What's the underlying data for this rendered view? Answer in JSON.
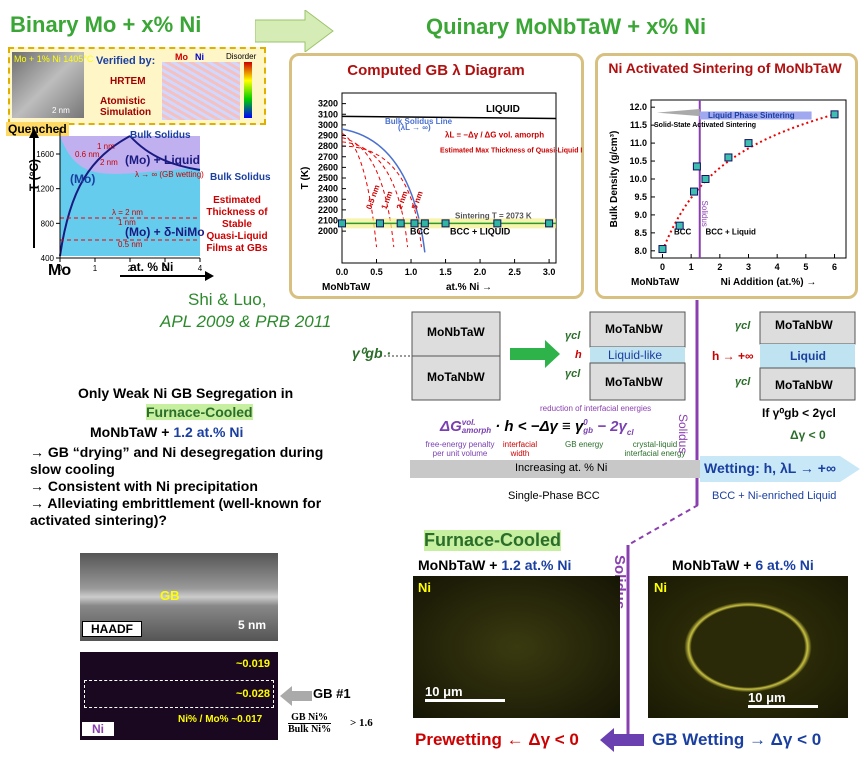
{
  "header": {
    "left_title": "Binary Mo + x% Ni",
    "right_title": "Quinary MoNbTaW + x% Ni"
  },
  "binary": {
    "inset_label": "Mo + 1% Ni 1405°C",
    "verified_by": "Verified by:",
    "hrtem": "HRTEM",
    "atomistic": "Atomistic Simulation",
    "mo": "Mo",
    "ni": "Ni",
    "disorder": "Disorder",
    "scale": "2 nm",
    "quenched": "Quenched",
    "ylabel": "T (°C)",
    "xlabel": "at. % Ni",
    "x_start": "Mo",
    "ylim": [
      400,
      1900
    ],
    "yticks": [
      400,
      800,
      1200,
      1600
    ],
    "xlim": [
      0,
      4
    ],
    "xticks": [
      0,
      1,
      2,
      3,
      4
    ],
    "bulk_solidus_top": "Bulk Solidus",
    "bulk_solidus": "Bulk Solidus",
    "mo_region": "(Mo)",
    "mo_liquid": "(Mo) + Liquid",
    "mo_nimo": "(Mo) + δ-NiMo",
    "wetting": "λ → ∞ (GB wetting)",
    "lambda_labels": [
      "1 nm",
      "0.6 nm",
      "2 nm",
      "λ = 2 nm",
      "1 nm",
      "0.5 nm"
    ],
    "thickness_note": "Estimated Thickness of Stable Quasi-Liquid Films at GBs"
  },
  "citation": {
    "authors": "Shi & Luo,",
    "journals": "APL 2009 & PRB 2011"
  },
  "chart_data": [
    {
      "type": "scatter",
      "title": "Computed GB λ Diagram",
      "x_label": "at.% Ni →",
      "y_label": "T (K)",
      "x_start_label": "MoNbTaW",
      "xlim": [
        0,
        3.1
      ],
      "xticks": [
        {
          "value": 0,
          "label": "0.0"
        },
        0.5,
        {
          "value": 1,
          "label": "1.0"
        },
        1.5,
        {
          "value": 2,
          "label": "2.0"
        },
        2.5,
        {
          "value": 3,
          "label": "3.0"
        }
      ],
      "ylim": [
        1700,
        3300
      ],
      "yticks": [
        2000,
        2100,
        2200,
        2300,
        2400,
        2500,
        2600,
        2700,
        2800,
        2900,
        3000,
        3100,
        3200
      ],
      "series": [
        {
          "color": "#2fb5a0",
          "x": [
            0,
            0.55,
            0.85,
            1.05,
            1.2,
            1.5,
            2.25,
            3
          ],
          "values": [
            2073,
            2073,
            2073,
            2073,
            2073,
            2073,
            2073,
            2073
          ]
        }
      ],
      "annotations": {
        "liquid": "LIQUID",
        "bcc": "BCC",
        "bcc_liquid": "BCC + LIQUID",
        "solidus": "Bulk Solidus Line",
        "solidus_sub": "(λL → ∞)",
        "lambda_eq": "λL ≡ −Δγ / ΔG vol. amorph",
        "max_thickness": "Estimated Max Thickness of Quasi-Liquid Interfacial Film",
        "sintering": "Sintering T = 2073 K",
        "film_labels": [
          "0.5 nm",
          "1 nm",
          "2 nm",
          "5 nm"
        ]
      }
    },
    {
      "type": "scatter",
      "title": "Ni Activated Sintering of MoNbTaW",
      "x_label": "Ni Addition (at.%) →",
      "y_label": "Bulk Density (g/cm³)",
      "x_start_label": "MoNbTaW",
      "xlim": [
        -0.4,
        6.4
      ],
      "xticks": [
        0,
        1,
        2,
        3,
        4,
        5,
        6
      ],
      "ylim": [
        7.8,
        12.2
      ],
      "yticks": [
        {
          "value": 8,
          "label": "8.0"
        },
        8.5,
        {
          "value": 9,
          "label": "9.0"
        },
        9.5,
        {
          "value": 10,
          "label": "10.0"
        },
        10.5,
        {
          "value": 11,
          "label": "11.0"
        },
        11.5,
        {
          "value": 12,
          "label": "12.0"
        }
      ],
      "series": [
        {
          "color": "#3fbfb0",
          "x": [
            0,
            0.6,
            1.1,
            1.2,
            1.5,
            2.3,
            3,
            6
          ],
          "values": [
            8.05,
            8.7,
            9.65,
            10.35,
            10.0,
            10.6,
            11.0,
            11.8
          ]
        }
      ],
      "annotations": {
        "solid_state": "Solid-State Activated Sintering",
        "liquid_phase": "Liquid Phase Sintering",
        "bcc": "BCC",
        "bcc_liquid": "BCC + Liquid",
        "solidus": "Solidus"
      }
    }
  ],
  "schematic": {
    "block_top": "MoNbTaW",
    "block_bottom": "MoTaNbW",
    "mid_top": "MoTaNbW",
    "mid_bottom": "MoTaNbW",
    "right_top": "MoTaNbW",
    "right_bottom": "MoTaNbW",
    "liquid_like": "Liquid-like",
    "liquid": "Liquid",
    "gamma_gb": "γ⁰gb ·",
    "gamma_cl": [
      "γcl",
      "γcl",
      "γcl",
      "γcl"
    ],
    "h": "h",
    "h_inf": "h → +∞",
    "condition": "If γ⁰gb < 2γcl",
    "dgamma": "Δγ < 0",
    "reduction": "reduction of interfacial energies",
    "equation": [
      "ΔG",
      "vol.",
      "amorph",
      "· h < −Δγ ≡ γ",
      "0",
      "gb",
      "− 2γ",
      "cl"
    ],
    "notes": [
      "free-energy penalty per unit volume",
      "interfacial width",
      "GB energy",
      "crystal-liquid interfacial energy"
    ],
    "increasing": "Increasing at. % Ni",
    "wetting": "Wetting: h, λL → +∞",
    "single_phase": "Single-Phase BCC",
    "two_phase": "BCC + Ni-enriched Liquid",
    "solidus": "Solidus"
  },
  "segregation": {
    "line1": "Only Weak Ni GB Segregation in",
    "furnace": "Furnace-Cooled",
    "alloy": "MoNbTaW +",
    "conc": "1.2 at.% Ni",
    "bullets": [
      "→ GB “drying” and Ni desegregation during slow cooling",
      "→ Consistent with Ni precipitation",
      "→ Alleviating embrittlement (well-known for activated sintering)?"
    ]
  },
  "haadf": {
    "label": "HAADF",
    "gb": "GB",
    "scale": "5 nm"
  },
  "ni_map": {
    "label": "Ni",
    "values": [
      "~0.019",
      "~0.028"
    ],
    "ratio": "Ni% / Mo% ~0.017",
    "gb_label": "GB #1",
    "formula_num": "GB Ni%",
    "formula_den": "Bulk Ni%",
    "formula_rhs": "> 1.6"
  },
  "bottom": {
    "furnace": "Furnace-Cooled",
    "left_alloy": "MoNbTaW +",
    "left_conc": "1.2 at.% Ni",
    "right_alloy": "MoNbTaW +",
    "right_conc": "6 at.% Ni",
    "ni_left": "Ni",
    "ni_right": "Ni",
    "scale_left": "10 μm",
    "scale_right": "10 μm",
    "solidus": "Solidus",
    "prewetting": "Prewetting ← Δγ < 0",
    "gb_wetting": "GB Wetting → Δγ < 0"
  }
}
